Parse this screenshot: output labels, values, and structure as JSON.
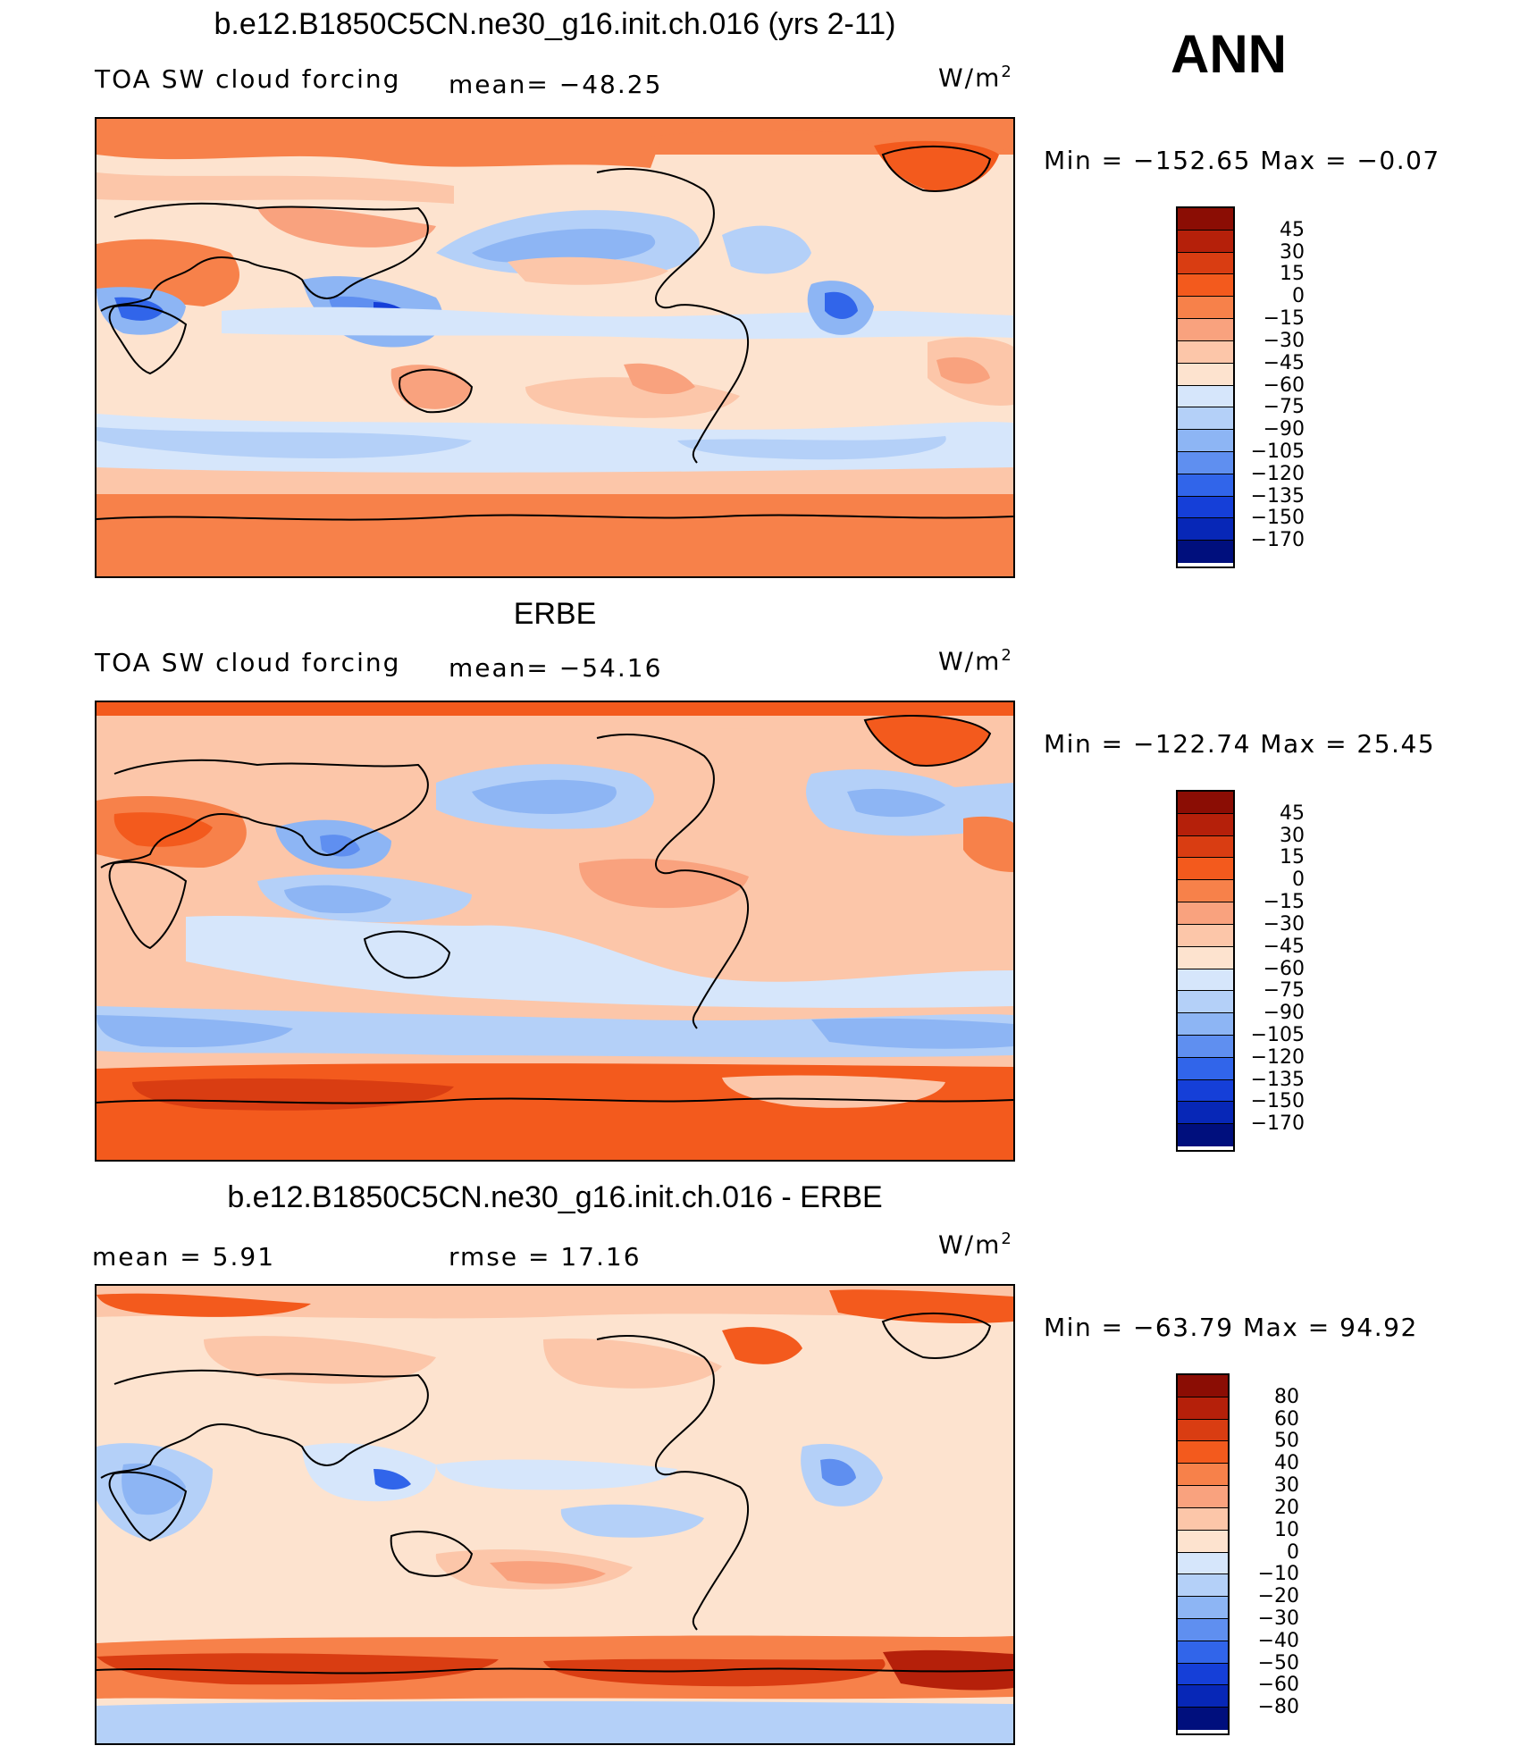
{
  "season": "ANN",
  "units_prefix": "W/m",
  "units_sup": "2",
  "panels": [
    {
      "title": "b.e12.B1850C5CN.ne30_g16.init.ch.016 (yrs 2-11)",
      "left_label": "TOA SW cloud forcing",
      "mid_label": "mean= −48.25",
      "minmax": "Min = −152.65 Max = −0.07",
      "colorbar": {
        "levels": [
          "45",
          "30",
          "15",
          "0",
          "−15",
          "−30",
          "−45",
          "−60",
          "−75",
          "−90",
          "−105",
          "−120",
          "−135",
          "−150",
          "−170"
        ],
        "colors": [
          "#8b0d04",
          "#b5200a",
          "#d93d12",
          "#f35a1d",
          "#f7814a",
          "#f9a27e",
          "#fcc6a9",
          "#fde3cf",
          "#d6e6fb",
          "#b4d0f8",
          "#8db5f4",
          "#5f8ff0",
          "#3165ea",
          "#153fd8",
          "#0727b7",
          "#000f7d"
        ]
      },
      "chart_data": {
        "type": "heatmap",
        "title": "b.e12.B1850C5CN.ne30_g16.init.ch.016 (yrs 2-11)",
        "variable": "TOA SW cloud forcing",
        "units": "W/m2",
        "mean": -48.25,
        "min": -152.65,
        "max": -0.07,
        "contour_levels": [
          45,
          30,
          15,
          0,
          -15,
          -30,
          -45,
          -60,
          -75,
          -90,
          -105,
          -120,
          -135,
          -150,
          -170
        ]
      }
    },
    {
      "title": "ERBE",
      "left_label": "TOA SW cloud forcing",
      "mid_label": "mean= −54.16",
      "minmax": "Min = −122.74 Max =  25.45",
      "colorbar": {
        "levels": [
          "45",
          "30",
          "15",
          "0",
          "−15",
          "−30",
          "−45",
          "−60",
          "−75",
          "−90",
          "−105",
          "−120",
          "−135",
          "−150",
          "−170"
        ],
        "colors": [
          "#8b0d04",
          "#b5200a",
          "#d93d12",
          "#f35a1d",
          "#f7814a",
          "#f9a27e",
          "#fcc6a9",
          "#fde3cf",
          "#d6e6fb",
          "#b4d0f8",
          "#8db5f4",
          "#5f8ff0",
          "#3165ea",
          "#153fd8",
          "#0727b7",
          "#000f7d"
        ]
      },
      "chart_data": {
        "type": "heatmap",
        "title": "ERBE",
        "variable": "TOA SW cloud forcing",
        "units": "W/m2",
        "mean": -54.16,
        "min": -122.74,
        "max": 25.45,
        "contour_levels": [
          45,
          30,
          15,
          0,
          -15,
          -30,
          -45,
          -60,
          -75,
          -90,
          -105,
          -120,
          -135,
          -150,
          -170
        ]
      }
    },
    {
      "title": "b.e12.B1850C5CN.ne30_g16.init.ch.016 - ERBE",
      "left_label": "mean =    5.91",
      "mid_label": "rmse =   17.16",
      "minmax": "Min = −63.79 Max =   94.92",
      "colorbar": {
        "levels": [
          "80",
          "60",
          "50",
          "40",
          "30",
          "20",
          "10",
          "0",
          "−10",
          "−20",
          "−30",
          "−40",
          "−50",
          "−60",
          "−80"
        ],
        "colors": [
          "#8b0d04",
          "#b5200a",
          "#d93d12",
          "#f35a1d",
          "#f7814a",
          "#f9a27e",
          "#fcc6a9",
          "#fde3cf",
          "#d6e6fb",
          "#b4d0f8",
          "#8db5f4",
          "#5f8ff0",
          "#3165ea",
          "#153fd8",
          "#0727b7",
          "#000f7d"
        ]
      },
      "chart_data": {
        "type": "heatmap",
        "title": "b.e12.B1850C5CN.ne30_g16.init.ch.016 - ERBE",
        "units": "W/m2",
        "mean": 5.91,
        "rmse": 17.16,
        "min": -63.79,
        "max": 94.92,
        "contour_levels": [
          80,
          60,
          50,
          40,
          30,
          20,
          10,
          0,
          -10,
          -20,
          -30,
          -40,
          -50,
          -60,
          -80
        ]
      }
    }
  ]
}
